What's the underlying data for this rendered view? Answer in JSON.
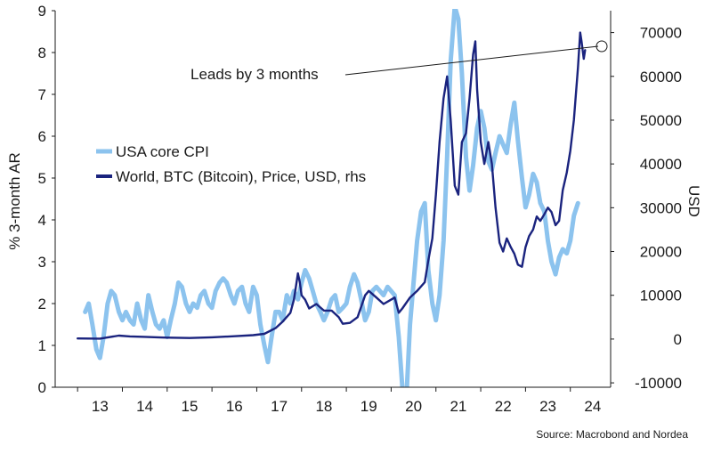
{
  "chart_data": {
    "type": "line",
    "title": "",
    "left_axis": {
      "label": "% 3-month AR",
      "ylim": [
        0,
        9
      ],
      "ticks": [
        0,
        1,
        2,
        3,
        4,
        5,
        6,
        7,
        8,
        9
      ]
    },
    "right_axis": {
      "label": "USD",
      "ylim": [
        -11000,
        75000
      ],
      "ticks": [
        -10000,
        0,
        10000,
        20000,
        30000,
        40000,
        50000,
        60000,
        70000
      ]
    },
    "x_axis": {
      "range": [
        2012.5,
        2024.9
      ],
      "ticks": [
        {
          "pos": 2013.5,
          "label": "13"
        },
        {
          "pos": 2014.5,
          "label": "14"
        },
        {
          "pos": 2015.5,
          "label": "15"
        },
        {
          "pos": 2016.5,
          "label": "16"
        },
        {
          "pos": 2017.5,
          "label": "17"
        },
        {
          "pos": 2018.5,
          "label": "18"
        },
        {
          "pos": 2019.5,
          "label": "19"
        },
        {
          "pos": 2020.5,
          "label": "20"
        },
        {
          "pos": 2021.5,
          "label": "21"
        },
        {
          "pos": 2022.5,
          "label": "22"
        },
        {
          "pos": 2023.5,
          "label": "23"
        },
        {
          "pos": 2024.5,
          "label": "24"
        }
      ]
    },
    "legend": {
      "placement": "upper-left",
      "entries": [
        "USA core CPI",
        "World, BTC (Bitcoin), Price, USD, rhs"
      ]
    },
    "annotation": "Leads by 3 months",
    "source": "Source: Macrobond and Nordea",
    "series": [
      {
        "name": "USA core CPI",
        "axis": "left",
        "color": "#8cc3ee",
        "points": [
          [
            2013.17,
            1.8
          ],
          [
            2013.25,
            2.0
          ],
          [
            2013.33,
            1.5
          ],
          [
            2013.42,
            0.9
          ],
          [
            2013.5,
            0.7
          ],
          [
            2013.58,
            1.2
          ],
          [
            2013.67,
            2.0
          ],
          [
            2013.75,
            2.3
          ],
          [
            2013.83,
            2.2
          ],
          [
            2013.92,
            1.8
          ],
          [
            2014.0,
            1.6
          ],
          [
            2014.08,
            1.8
          ],
          [
            2014.17,
            1.6
          ],
          [
            2014.25,
            1.5
          ],
          [
            2014.33,
            2.0
          ],
          [
            2014.42,
            1.6
          ],
          [
            2014.5,
            1.4
          ],
          [
            2014.58,
            2.2
          ],
          [
            2014.67,
            1.8
          ],
          [
            2014.75,
            1.5
          ],
          [
            2014.83,
            1.4
          ],
          [
            2014.92,
            1.6
          ],
          [
            2015.0,
            1.2
          ],
          [
            2015.08,
            1.6
          ],
          [
            2015.17,
            2.0
          ],
          [
            2015.25,
            2.5
          ],
          [
            2015.33,
            2.4
          ],
          [
            2015.42,
            2.0
          ],
          [
            2015.5,
            1.8
          ],
          [
            2015.58,
            2.0
          ],
          [
            2015.67,
            1.9
          ],
          [
            2015.75,
            2.2
          ],
          [
            2015.83,
            2.3
          ],
          [
            2015.92,
            2.0
          ],
          [
            2016.0,
            1.9
          ],
          [
            2016.08,
            2.3
          ],
          [
            2016.17,
            2.5
          ],
          [
            2016.25,
            2.6
          ],
          [
            2016.33,
            2.5
          ],
          [
            2016.42,
            2.2
          ],
          [
            2016.5,
            2.0
          ],
          [
            2016.58,
            2.3
          ],
          [
            2016.67,
            2.4
          ],
          [
            2016.75,
            2.0
          ],
          [
            2016.83,
            1.8
          ],
          [
            2016.92,
            2.4
          ],
          [
            2017.0,
            2.2
          ],
          [
            2017.08,
            1.5
          ],
          [
            2017.17,
            1.0
          ],
          [
            2017.25,
            0.6
          ],
          [
            2017.33,
            1.2
          ],
          [
            2017.42,
            1.8
          ],
          [
            2017.5,
            1.8
          ],
          [
            2017.58,
            1.6
          ],
          [
            2017.67,
            2.2
          ],
          [
            2017.75,
            2.0
          ],
          [
            2017.83,
            2.3
          ],
          [
            2017.92,
            2.1
          ],
          [
            2018.0,
            2.5
          ],
          [
            2018.08,
            2.8
          ],
          [
            2018.17,
            2.6
          ],
          [
            2018.25,
            2.3
          ],
          [
            2018.33,
            2.0
          ],
          [
            2018.42,
            1.8
          ],
          [
            2018.5,
            1.6
          ],
          [
            2018.58,
            1.8
          ],
          [
            2018.67,
            2.1
          ],
          [
            2018.75,
            2.2
          ],
          [
            2018.83,
            1.8
          ],
          [
            2018.92,
            1.9
          ],
          [
            2019.0,
            2.0
          ],
          [
            2019.08,
            2.4
          ],
          [
            2019.17,
            2.7
          ],
          [
            2019.25,
            2.5
          ],
          [
            2019.33,
            2.1
          ],
          [
            2019.42,
            1.6
          ],
          [
            2019.5,
            1.8
          ],
          [
            2019.58,
            2.3
          ],
          [
            2019.67,
            2.4
          ],
          [
            2019.75,
            2.3
          ],
          [
            2019.83,
            2.2
          ],
          [
            2019.92,
            2.4
          ],
          [
            2020.0,
            2.3
          ],
          [
            2020.08,
            2.2
          ],
          [
            2020.17,
            1.2
          ],
          [
            2020.25,
            0.0
          ],
          [
            2020.33,
            -0.5
          ],
          [
            2020.42,
            1.5
          ],
          [
            2020.5,
            2.5
          ],
          [
            2020.58,
            3.5
          ],
          [
            2020.67,
            4.2
          ],
          [
            2020.75,
            4.4
          ],
          [
            2020.83,
            2.8
          ],
          [
            2020.92,
            2.0
          ],
          [
            2021.0,
            1.6
          ],
          [
            2021.08,
            2.2
          ],
          [
            2021.17,
            3.5
          ],
          [
            2021.25,
            5.5
          ],
          [
            2021.33,
            7.8
          ],
          [
            2021.42,
            9.1
          ],
          [
            2021.5,
            8.8
          ],
          [
            2021.58,
            7.5
          ],
          [
            2021.67,
            5.5
          ],
          [
            2021.75,
            4.7
          ],
          [
            2021.83,
            5.3
          ],
          [
            2021.92,
            6.2
          ],
          [
            2022.0,
            6.6
          ],
          [
            2022.08,
            6.2
          ],
          [
            2022.17,
            5.4
          ],
          [
            2022.25,
            5.2
          ],
          [
            2022.33,
            5.6
          ],
          [
            2022.42,
            6.0
          ],
          [
            2022.5,
            5.8
          ],
          [
            2022.58,
            5.6
          ],
          [
            2022.67,
            6.3
          ],
          [
            2022.75,
            6.8
          ],
          [
            2022.83,
            5.9
          ],
          [
            2022.92,
            5.0
          ],
          [
            2023.0,
            4.3
          ],
          [
            2023.08,
            4.6
          ],
          [
            2023.17,
            5.1
          ],
          [
            2023.25,
            4.9
          ],
          [
            2023.33,
            4.4
          ],
          [
            2023.42,
            4.2
          ],
          [
            2023.5,
            3.5
          ],
          [
            2023.58,
            3.0
          ],
          [
            2023.67,
            2.7
          ],
          [
            2023.75,
            3.1
          ],
          [
            2023.83,
            3.3
          ],
          [
            2023.92,
            3.2
          ],
          [
            2024.0,
            3.5
          ],
          [
            2024.08,
            4.1
          ],
          [
            2024.17,
            4.4
          ]
        ]
      },
      {
        "name": "World, BTC (Bitcoin), Price, USD, rhs",
        "axis": "right",
        "color": "#1a237e",
        "points": [
          [
            2013.0,
            150
          ],
          [
            2013.5,
            100
          ],
          [
            2013.92,
            800
          ],
          [
            2014.17,
            600
          ],
          [
            2014.5,
            500
          ],
          [
            2014.92,
            350
          ],
          [
            2015.5,
            250
          ],
          [
            2016.0,
            400
          ],
          [
            2016.5,
            650
          ],
          [
            2016.92,
            900
          ],
          [
            2017.17,
            1200
          ],
          [
            2017.42,
            2500
          ],
          [
            2017.58,
            4000
          ],
          [
            2017.75,
            6000
          ],
          [
            2017.83,
            9000
          ],
          [
            2017.92,
            15000
          ],
          [
            2017.96,
            13000
          ],
          [
            2018.0,
            10000
          ],
          [
            2018.08,
            9000
          ],
          [
            2018.17,
            7000
          ],
          [
            2018.33,
            8000
          ],
          [
            2018.5,
            6500
          ],
          [
            2018.67,
            6500
          ],
          [
            2018.83,
            5000
          ],
          [
            2018.92,
            3500
          ],
          [
            2019.08,
            3700
          ],
          [
            2019.25,
            5000
          ],
          [
            2019.42,
            10000
          ],
          [
            2019.5,
            11000
          ],
          [
            2019.67,
            9500
          ],
          [
            2019.83,
            8000
          ],
          [
            2020.0,
            9000
          ],
          [
            2020.08,
            9500
          ],
          [
            2020.17,
            6000
          ],
          [
            2020.25,
            7000
          ],
          [
            2020.42,
            9500
          ],
          [
            2020.58,
            11000
          ],
          [
            2020.75,
            13000
          ],
          [
            2020.83,
            18000
          ],
          [
            2020.92,
            23000
          ],
          [
            2021.0,
            33000
          ],
          [
            2021.08,
            45000
          ],
          [
            2021.17,
            55000
          ],
          [
            2021.25,
            60000
          ],
          [
            2021.33,
            50000
          ],
          [
            2021.42,
            35000
          ],
          [
            2021.5,
            33000
          ],
          [
            2021.58,
            45000
          ],
          [
            2021.67,
            47000
          ],
          [
            2021.75,
            55000
          ],
          [
            2021.83,
            65000
          ],
          [
            2021.88,
            68000
          ],
          [
            2021.92,
            57000
          ],
          [
            2022.0,
            45000
          ],
          [
            2022.08,
            40000
          ],
          [
            2022.17,
            45000
          ],
          [
            2022.25,
            40000
          ],
          [
            2022.33,
            30000
          ],
          [
            2022.42,
            22000
          ],
          [
            2022.5,
            20000
          ],
          [
            2022.58,
            23000
          ],
          [
            2022.67,
            21000
          ],
          [
            2022.75,
            19500
          ],
          [
            2022.83,
            17000
          ],
          [
            2022.92,
            16500
          ],
          [
            2023.0,
            21000
          ],
          [
            2023.08,
            23500
          ],
          [
            2023.17,
            25000
          ],
          [
            2023.25,
            28000
          ],
          [
            2023.33,
            27000
          ],
          [
            2023.42,
            28500
          ],
          [
            2023.5,
            30000
          ],
          [
            2023.58,
            29000
          ],
          [
            2023.67,
            26000
          ],
          [
            2023.75,
            27000
          ],
          [
            2023.83,
            34000
          ],
          [
            2023.92,
            38000
          ],
          [
            2024.0,
            43000
          ],
          [
            2024.08,
            50000
          ],
          [
            2024.17,
            62000
          ],
          [
            2024.22,
            70000
          ],
          [
            2024.25,
            68000
          ],
          [
            2024.3,
            64000
          ],
          [
            2024.33,
            66000
          ]
        ]
      }
    ]
  }
}
